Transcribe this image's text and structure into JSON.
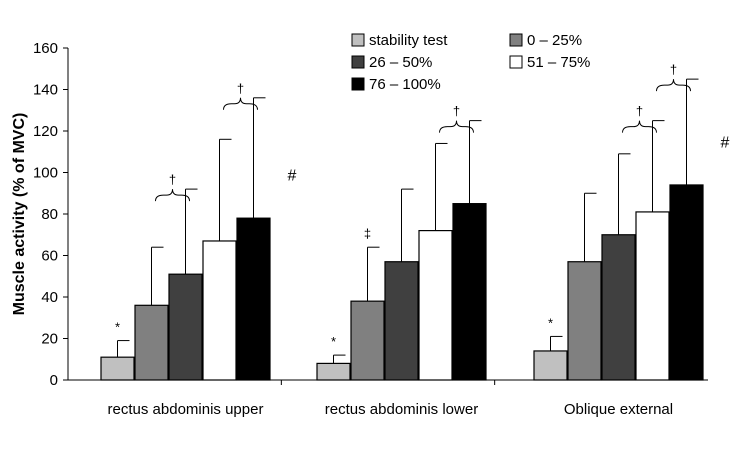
{
  "chart_data": {
    "type": "bar",
    "title": "",
    "xlabel": "",
    "ylabel": "Muscle activity (% of MVC)",
    "ylim": [
      0,
      160
    ],
    "yticks": [
      "0",
      "20",
      "40",
      "60",
      "80",
      "100",
      "120",
      "140",
      "160"
    ],
    "grid": false,
    "legend_position": "top-right",
    "categories": [
      "rectus abdominis upper",
      "rectus abdominis lower",
      "Oblique external"
    ],
    "series": [
      {
        "name": "stability test",
        "color": "#c0c0c0",
        "values": [
          11,
          8,
          14
        ],
        "errors": [
          8,
          4,
          7
        ]
      },
      {
        "name": "0 – 25%",
        "color": "#808080",
        "values": [
          36,
          38,
          57
        ],
        "errors": [
          28,
          26,
          33
        ]
      },
      {
        "name": "26 – 50%",
        "color": "#404040",
        "values": [
          51,
          57,
          70
        ],
        "errors": [
          41,
          35,
          39
        ]
      },
      {
        "name": "51 – 75%",
        "color": "#ffffff",
        "values": [
          67,
          72,
          81
        ],
        "errors": [
          49,
          42,
          44
        ]
      },
      {
        "name": "76 – 100%",
        "color": "#000000",
        "values": [
          78,
          85,
          94
        ],
        "errors": [
          58,
          40,
          51
        ]
      }
    ],
    "annotations": [
      {
        "category": 0,
        "series": 0,
        "symbol": "*"
      },
      {
        "category": 0,
        "series": 4,
        "symbol": "#"
      },
      {
        "category": 1,
        "series": 0,
        "symbol": "*"
      },
      {
        "category": 1,
        "series": 1,
        "symbol": "‡"
      },
      {
        "category": 2,
        "series": 0,
        "symbol": "*"
      },
      {
        "category": 2,
        "series": 4,
        "symbol": "#"
      }
    ],
    "brackets": [
      {
        "category": 0,
        "from": 1,
        "to": 2,
        "symbol": "†"
      },
      {
        "category": 0,
        "from": 3,
        "to": 4,
        "symbol": "†"
      },
      {
        "category": 1,
        "from": 3,
        "to": 4,
        "symbol": "†"
      },
      {
        "category": 2,
        "from": 2,
        "to": 3,
        "symbol": "†"
      },
      {
        "category": 2,
        "from": 3,
        "to": 4,
        "symbol": "†"
      }
    ]
  }
}
